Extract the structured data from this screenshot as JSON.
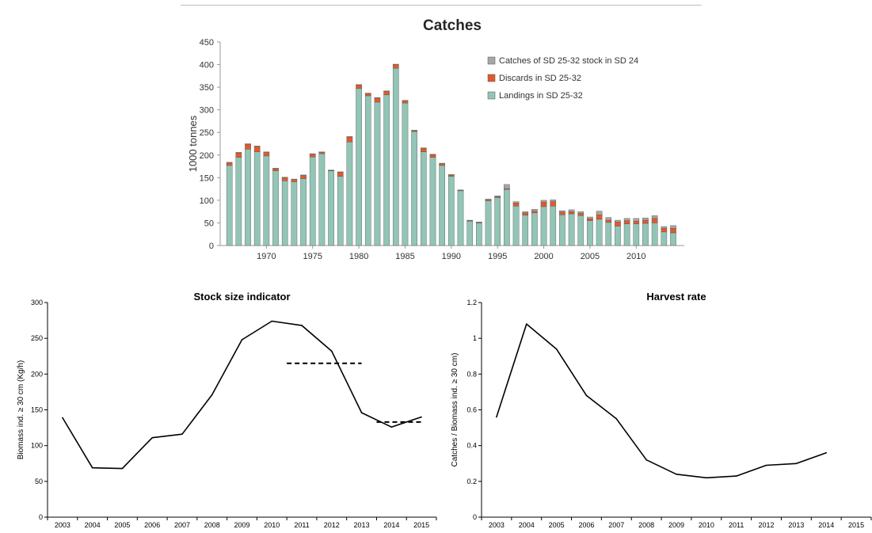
{
  "chart_data": [
    {
      "type": "bar",
      "stacked": true,
      "title": "Catches",
      "ylabel": "1000 tonnes",
      "xlabel": "",
      "ylim": [
        0,
        450
      ],
      "yticks": [
        0,
        50,
        100,
        150,
        200,
        250,
        300,
        350,
        400,
        450
      ],
      "xtick_labels": [
        "1970",
        "1975",
        "1980",
        "1985",
        "1990",
        "1995",
        "2000",
        "2005",
        "2010"
      ],
      "grid": false,
      "legend_position": "top-right",
      "colors": [
        "#92c5b6",
        "#e05a2b",
        "#a6a6a6"
      ],
      "categories": [
        1966,
        1967,
        1968,
        1969,
        1970,
        1971,
        1972,
        1973,
        1974,
        1975,
        1976,
        1977,
        1978,
        1979,
        1980,
        1981,
        1982,
        1983,
        1984,
        1985,
        1986,
        1987,
        1988,
        1989,
        1990,
        1991,
        1992,
        1993,
        1994,
        1995,
        1996,
        1997,
        1998,
        1999,
        2000,
        2001,
        2002,
        2003,
        2004,
        2005,
        2006,
        2007,
        2008,
        2009,
        2010,
        2011,
        2012,
        2013,
        2014
      ],
      "series": [
        {
          "name": "Landings in SD 25-32",
          "values": [
            177,
            195,
            213,
            207,
            198,
            165,
            143,
            141,
            148,
            196,
            203,
            165,
            153,
            229,
            347,
            331,
            317,
            333,
            392,
            315,
            252,
            207,
            195,
            177,
            153,
            121,
            54,
            50,
            99,
            106,
            124,
            87,
            67,
            72,
            86,
            87,
            68,
            70,
            66,
            55,
            58,
            51,
            43,
            48,
            48,
            49,
            50,
            30,
            28
          ]
        },
        {
          "name": "Discards in SD 25-32",
          "values": [
            6,
            10,
            11,
            12,
            8,
            5,
            7,
            5,
            7,
            6,
            3,
            1,
            9,
            11,
            8,
            5,
            9,
            8,
            8,
            5,
            2,
            8,
            6,
            4,
            3,
            1,
            1,
            1,
            2,
            2,
            2,
            7,
            5,
            4,
            10,
            10,
            6,
            5,
            5,
            4,
            10,
            5,
            9,
            7,
            6,
            7,
            10,
            8,
            10
          ]
        },
        {
          "name": "Catches of SD 25-32 stock in SD 24",
          "values": [
            1,
            1,
            1,
            1,
            1,
            1,
            1,
            1,
            1,
            1,
            1,
            1,
            1,
            1,
            1,
            1,
            1,
            1,
            1,
            1,
            1,
            1,
            1,
            1,
            1,
            1,
            1,
            1,
            2,
            2,
            9,
            3,
            3,
            4,
            4,
            4,
            3,
            4,
            4,
            4,
            8,
            6,
            4,
            5,
            6,
            5,
            6,
            4,
            6
          ]
        }
      ]
    },
    {
      "type": "line",
      "title": "Stock size indicator",
      "ylabel": "Biomass ind. ≥ 30 cm (Kg/h)",
      "xlabel": "",
      "ylim": [
        0,
        300
      ],
      "yticks": [
        0,
        50,
        100,
        150,
        200,
        250,
        300
      ],
      "x": [
        "2003",
        "2004",
        "2005",
        "2006",
        "2007",
        "2008",
        "2009",
        "2010",
        "2011",
        "2012",
        "2013",
        "2014",
        "2015"
      ],
      "series": [
        {
          "values": [
            139,
            69,
            68,
            111,
            116,
            171,
            248,
            274,
            268,
            232,
            146,
            126,
            140
          ]
        }
      ],
      "reference_lines": [
        {
          "from": "2011",
          "to": "2013",
          "value": 215,
          "style": "dashed"
        },
        {
          "from": "2014",
          "to": "2015",
          "value": 133,
          "style": "dashed"
        }
      ]
    },
    {
      "type": "line",
      "title": "Harvest rate",
      "ylabel": "Catches / Biomass ind. ≥ 30 cm)",
      "xlabel": "",
      "ylim": [
        0,
        1.2
      ],
      "yticks": [
        "0",
        "0.2",
        "0.4",
        "0.6",
        "0.8",
        "1",
        "1.2"
      ],
      "x": [
        "2003",
        "2004",
        "2005",
        "2006",
        "2007",
        "2008",
        "2009",
        "2010",
        "2011",
        "2012",
        "2013",
        "2014",
        "2015"
      ],
      "series": [
        {
          "values": [
            0.56,
            1.08,
            0.94,
            0.68,
            0.55,
            0.32,
            0.24,
            0.22,
            0.23,
            0.29,
            0.3,
            0.36,
            null
          ]
        }
      ]
    }
  ]
}
